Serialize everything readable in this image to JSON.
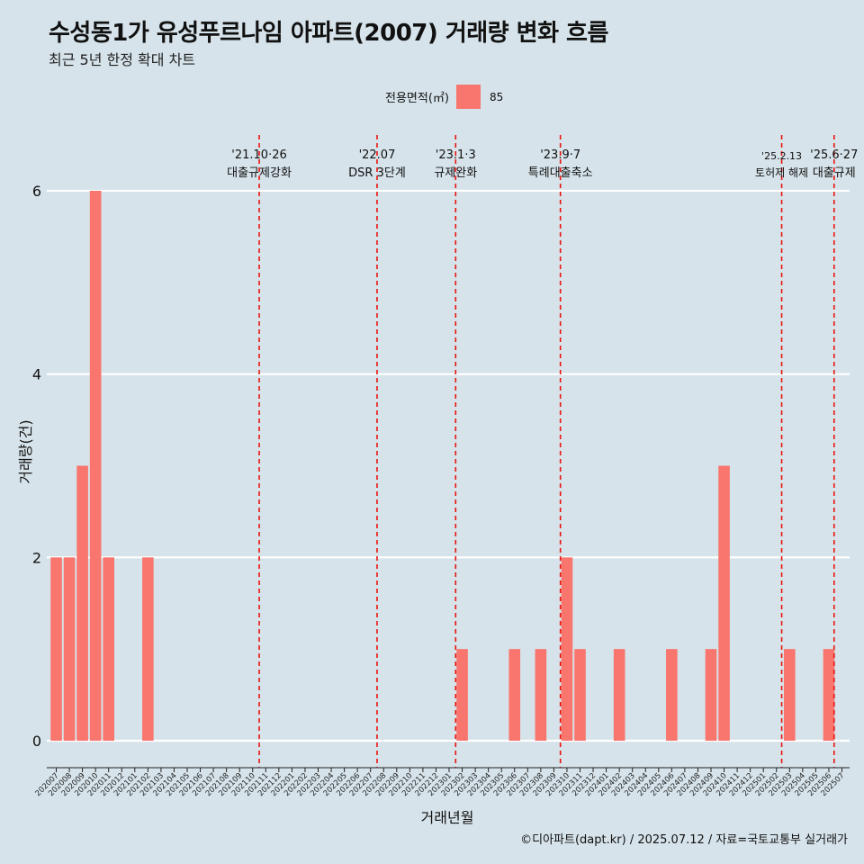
{
  "header": {
    "title": "수성동1가 유성푸르나임 아파트(2007) 거래량 변화 흐름",
    "subtitle": "최근 5년 한정 확대 차트"
  },
  "legend": {
    "label": "전용면적(㎡)",
    "entries": [
      {
        "name": "85",
        "color": "#f8766d"
      }
    ]
  },
  "caption": "©디아파트(dapt.kr) / 2025.07.12 / 자료=국토교통부 실거래가",
  "chart_data": {
    "type": "bar",
    "xlabel": "거래년월",
    "ylabel": "거래량(건)",
    "ylim": [
      0,
      6.6
    ],
    "yticks": [
      0,
      2,
      4,
      6
    ],
    "grid": true,
    "legend_position": "top",
    "bar_color": "#f8766d",
    "categories": [
      "202007",
      "202008",
      "202009",
      "202010",
      "202011",
      "202012",
      "202101",
      "202102",
      "202103",
      "202104",
      "202105",
      "202106",
      "202107",
      "202108",
      "202109",
      "202110",
      "202111",
      "202112",
      "202201",
      "202202",
      "202203",
      "202204",
      "202205",
      "202206",
      "202207",
      "202208",
      "202209",
      "202210",
      "202211",
      "202212",
      "202301",
      "202302",
      "202303",
      "202304",
      "202305",
      "202306",
      "202307",
      "202308",
      "202309",
      "202310",
      "202311",
      "202312",
      "202401",
      "202402",
      "202403",
      "202404",
      "202405",
      "202406",
      "202407",
      "202408",
      "202409",
      "202410",
      "202411",
      "202412",
      "202501",
      "202502",
      "202503",
      "202504",
      "202505",
      "202506",
      "202507"
    ],
    "series": [
      {
        "name": "85",
        "values": [
          2,
          2,
          3,
          6,
          2,
          0,
          0,
          2,
          0,
          0,
          0,
          0,
          0,
          0,
          0,
          0,
          0,
          0,
          0,
          0,
          0,
          0,
          0,
          0,
          0,
          0,
          0,
          0,
          0,
          0,
          0,
          1,
          0,
          0,
          0,
          1,
          0,
          1,
          0,
          2,
          1,
          0,
          0,
          1,
          0,
          0,
          0,
          1,
          0,
          0,
          1,
          3,
          0,
          0,
          0,
          0,
          1,
          0,
          0,
          1,
          0
        ]
      }
    ],
    "annotations": [
      {
        "x": 15.5,
        "date": "'21.10·26",
        "label": "대출규제강화"
      },
      {
        "x": 24.5,
        "date": "'22.07",
        "label": "DSR 3단계"
      },
      {
        "x": 30.5,
        "date": "'23.1·3",
        "label": "규제완화"
      },
      {
        "x": 38.5,
        "date": "'23.9·7",
        "label": "특례대출축소"
      },
      {
        "x": 55.4,
        "date": "'25.2.13",
        "label": "토허제 해제"
      },
      {
        "x": 59.4,
        "date": "'25.6·27",
        "label": "대출규제"
      }
    ]
  }
}
